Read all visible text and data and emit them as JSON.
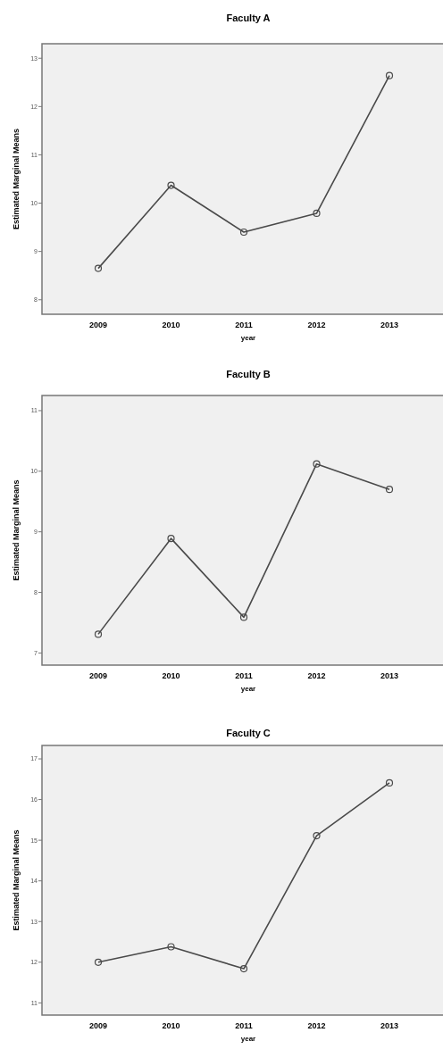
{
  "chart_data": [
    {
      "type": "line",
      "title": "Faculty A",
      "xlabel": "year",
      "ylabel": "Estimated Marginal Means",
      "categories": [
        "2009",
        "2010",
        "2011",
        "2012",
        "2013"
      ],
      "series": [
        {
          "color": "#4a4a4a",
          "values": [
            8.65,
            10.37,
            9.4,
            9.79,
            12.64
          ]
        }
      ],
      "ylim": [
        7.7,
        13.3
      ],
      "yticks": [
        8,
        9,
        10,
        11,
        12,
        13
      ],
      "marker": "circle"
    },
    {
      "type": "line",
      "title": "Faculty B",
      "xlabel": "year",
      "ylabel": "Estimated Marginal Means",
      "categories": [
        "2009",
        "2010",
        "2011",
        "2012",
        "2013"
      ],
      "series": [
        {
          "color": "#4a4a4a",
          "values": [
            7.31,
            8.89,
            7.59,
            10.12,
            9.7
          ]
        }
      ],
      "ylim": [
        6.8,
        11.25
      ],
      "yticks": [
        7,
        8,
        9,
        10,
        11
      ],
      "marker": "circle"
    },
    {
      "type": "line",
      "title": "Faculty C",
      "xlabel": "year",
      "ylabel": "Estimated Marginal Means",
      "categories": [
        "2009",
        "2010",
        "2011",
        "2012",
        "2013"
      ],
      "series": [
        {
          "color": "#4a4a4a",
          "values": [
            12.0,
            12.38,
            11.84,
            15.11,
            16.41
          ]
        }
      ],
      "ylim": [
        10.7,
        17.33
      ],
      "yticks": [
        11,
        12,
        13,
        14,
        15,
        16,
        17
      ],
      "marker": "circle"
    }
  ]
}
